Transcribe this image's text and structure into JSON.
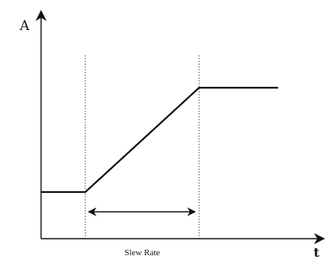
{
  "axes": {
    "y_label": "A",
    "x_label": "t"
  },
  "annotation": {
    "label": "Slew Rate"
  },
  "colors": {
    "ink": "#111111",
    "background": "#ffffff"
  }
}
